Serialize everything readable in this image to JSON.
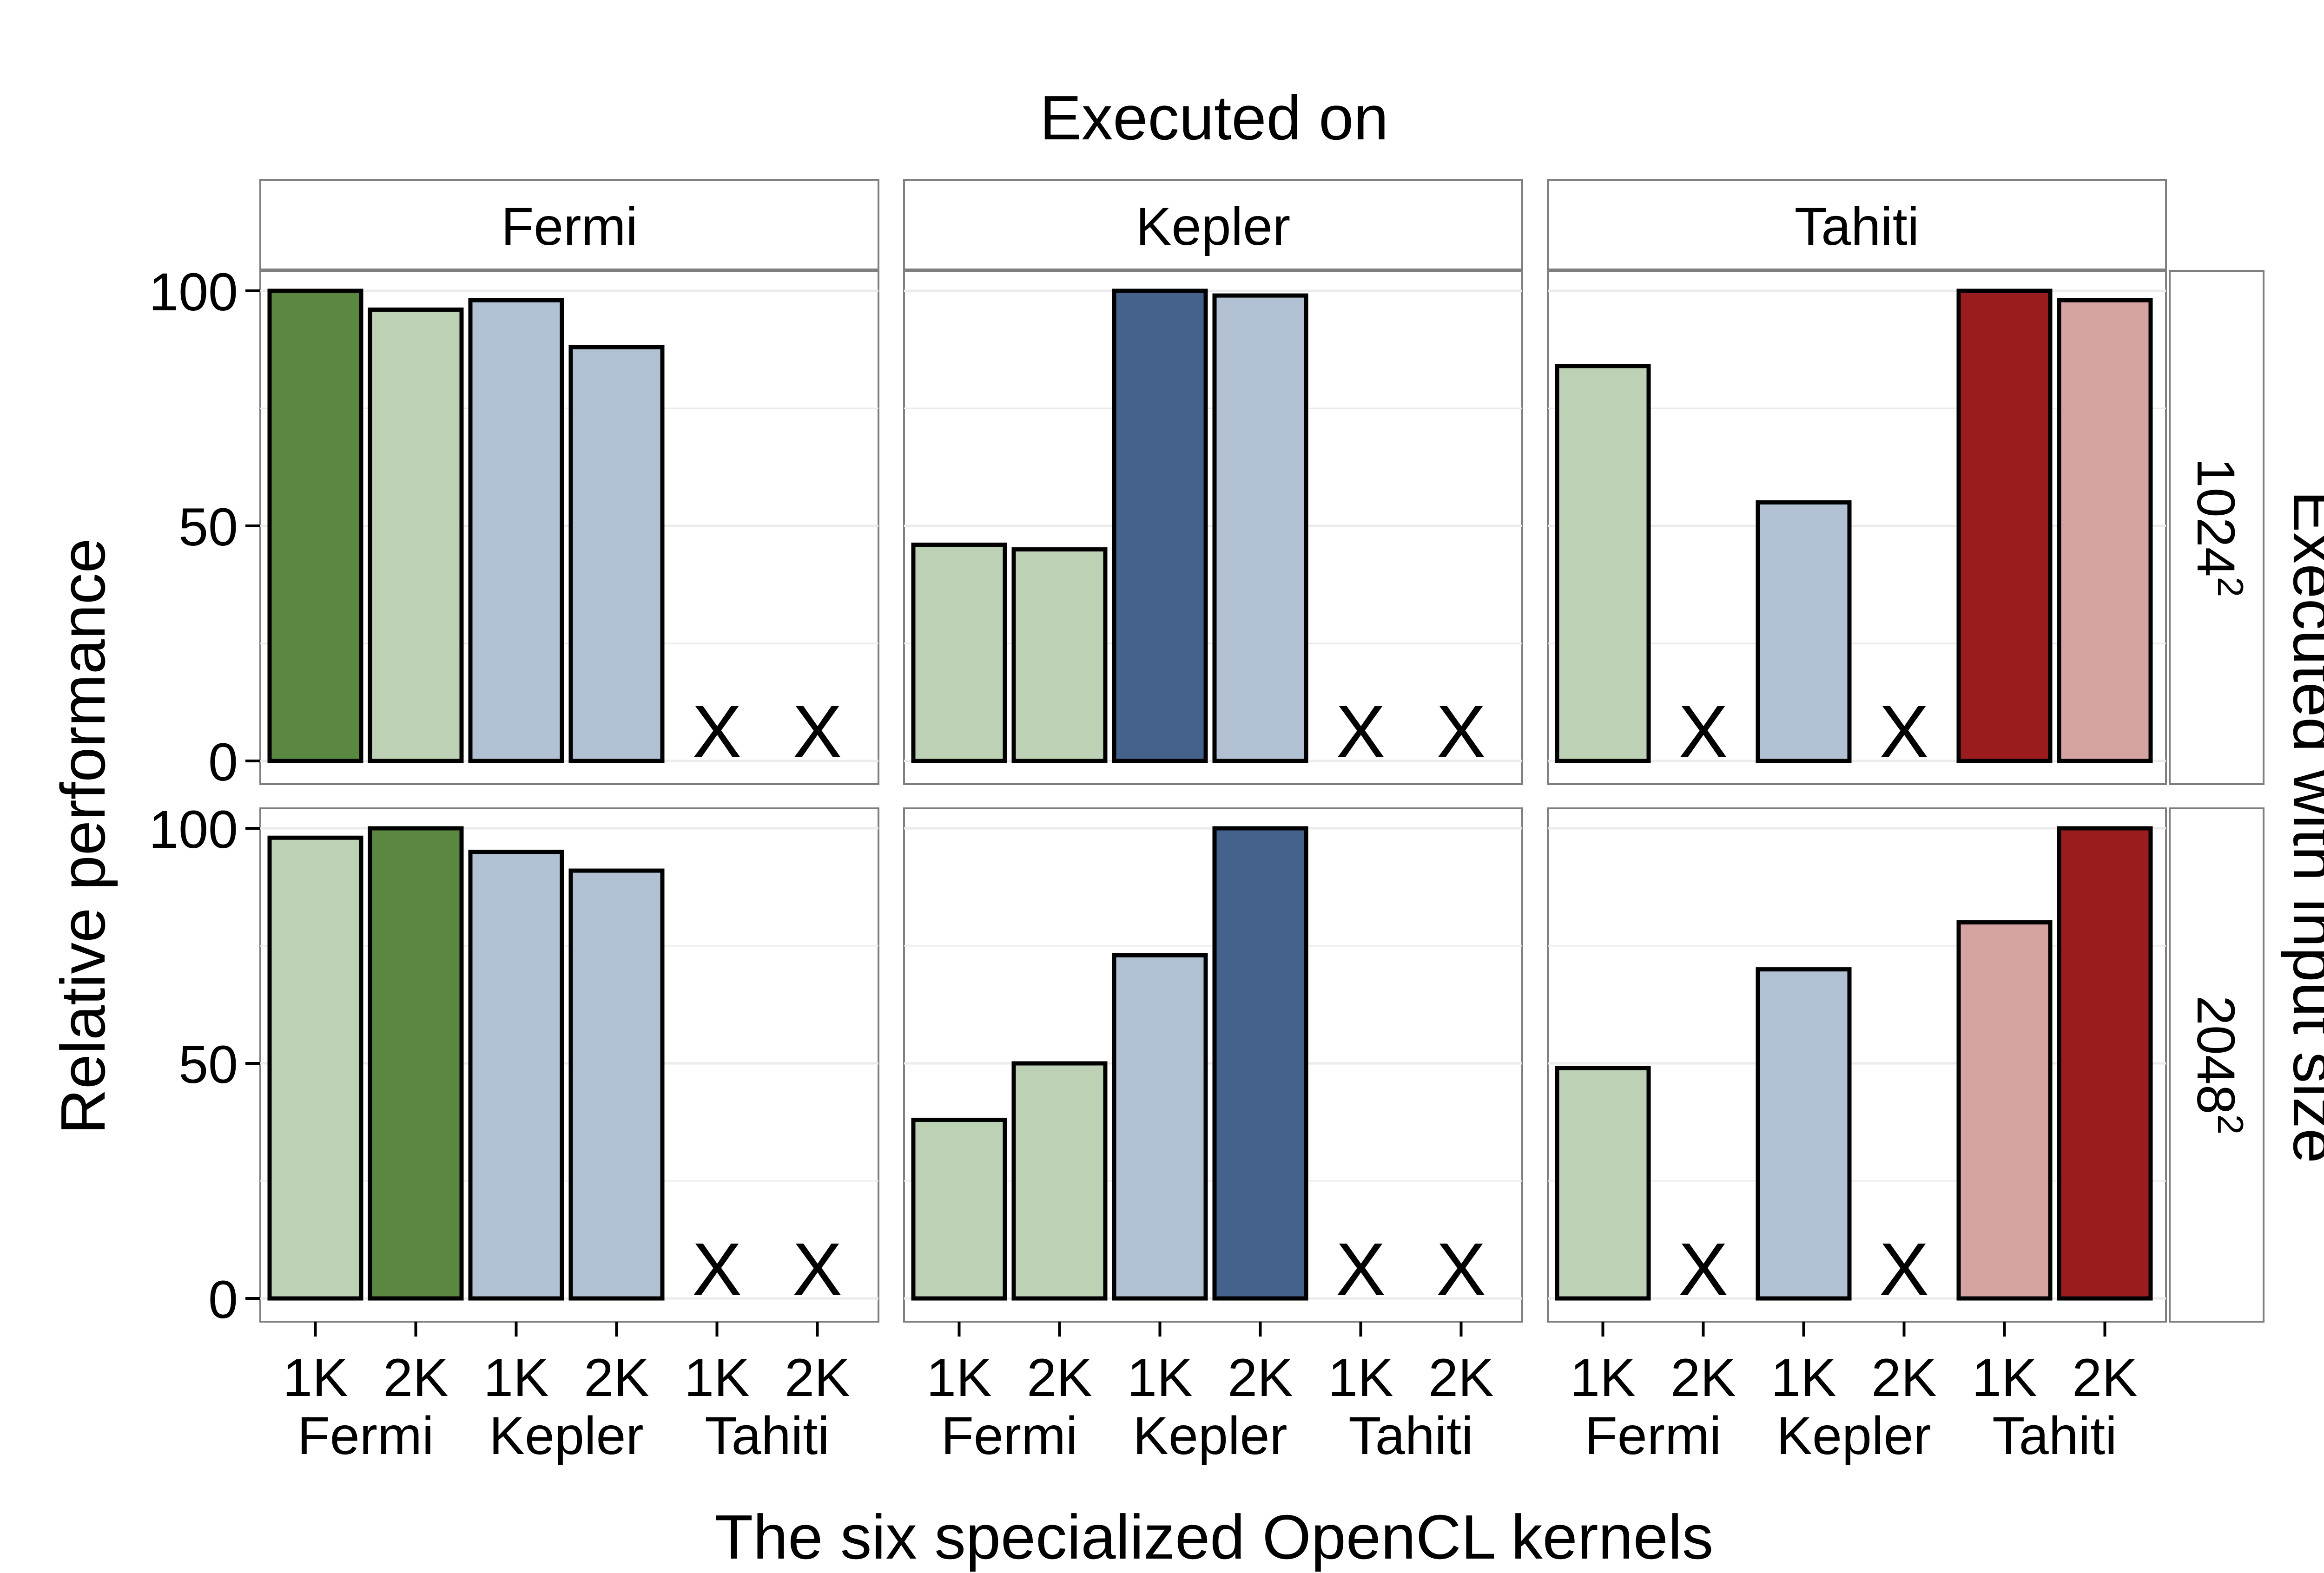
{
  "top_title": "Executed on",
  "right_title": "Executed with input size",
  "ylabel": "Relative performance",
  "xlabel": "The six specialized OpenCL kernels",
  "columns": [
    "Fermi",
    "Kepler",
    "Tahiti"
  ],
  "rows": [
    {
      "base": "1024",
      "sup": "2"
    },
    {
      "base": "2048",
      "sup": "2"
    }
  ],
  "kernel_sizes": [
    "1K",
    "2K",
    "1K",
    "2K",
    "1K",
    "2K"
  ],
  "kernel_groups": [
    "Fermi",
    "Kepler",
    "Tahiti"
  ],
  "missing_marker": "X",
  "colors": {
    "Fermi_dark": "#5a8840",
    "Fermi_light": "#bdd1b4",
    "Kepler_dark": "#44628c",
    "Kepler_light": "#b1c0d2",
    "Tahiti_dark": "#9b1c1e",
    "Tahiti_light": "#d5a3a2",
    "panel_border": "#7f7f7f",
    "grid": "#ebebeb"
  },
  "chart_data": {
    "type": "bar",
    "categories": [
      "1K Fermi",
      "2K Fermi",
      "1K Kepler",
      "2K Kepler",
      "1K Tahiti",
      "2K Tahiti"
    ],
    "ylim": [
      0,
      100
    ],
    "yticks": [
      0,
      50,
      100
    ],
    "grid": true,
    "panels": [
      {
        "executed_on": "Fermi",
        "input": "1024^2",
        "values": [
          100,
          96,
          98,
          88,
          null,
          null
        ]
      },
      {
        "executed_on": "Kepler",
        "input": "1024^2",
        "values": [
          46,
          45,
          100,
          99,
          null,
          null
        ]
      },
      {
        "executed_on": "Tahiti",
        "input": "1024^2",
        "values": [
          84,
          null,
          55,
          null,
          100,
          98
        ]
      },
      {
        "executed_on": "Fermi",
        "input": "2048^2",
        "values": [
          98,
          100,
          95,
          91,
          null,
          null
        ]
      },
      {
        "executed_on": "Kepler",
        "input": "2048^2",
        "values": [
          38,
          50,
          73,
          100,
          null,
          null
        ]
      },
      {
        "executed_on": "Tahiti",
        "input": "2048^2",
        "values": [
          49,
          null,
          70,
          null,
          80,
          100
        ]
      }
    ]
  }
}
